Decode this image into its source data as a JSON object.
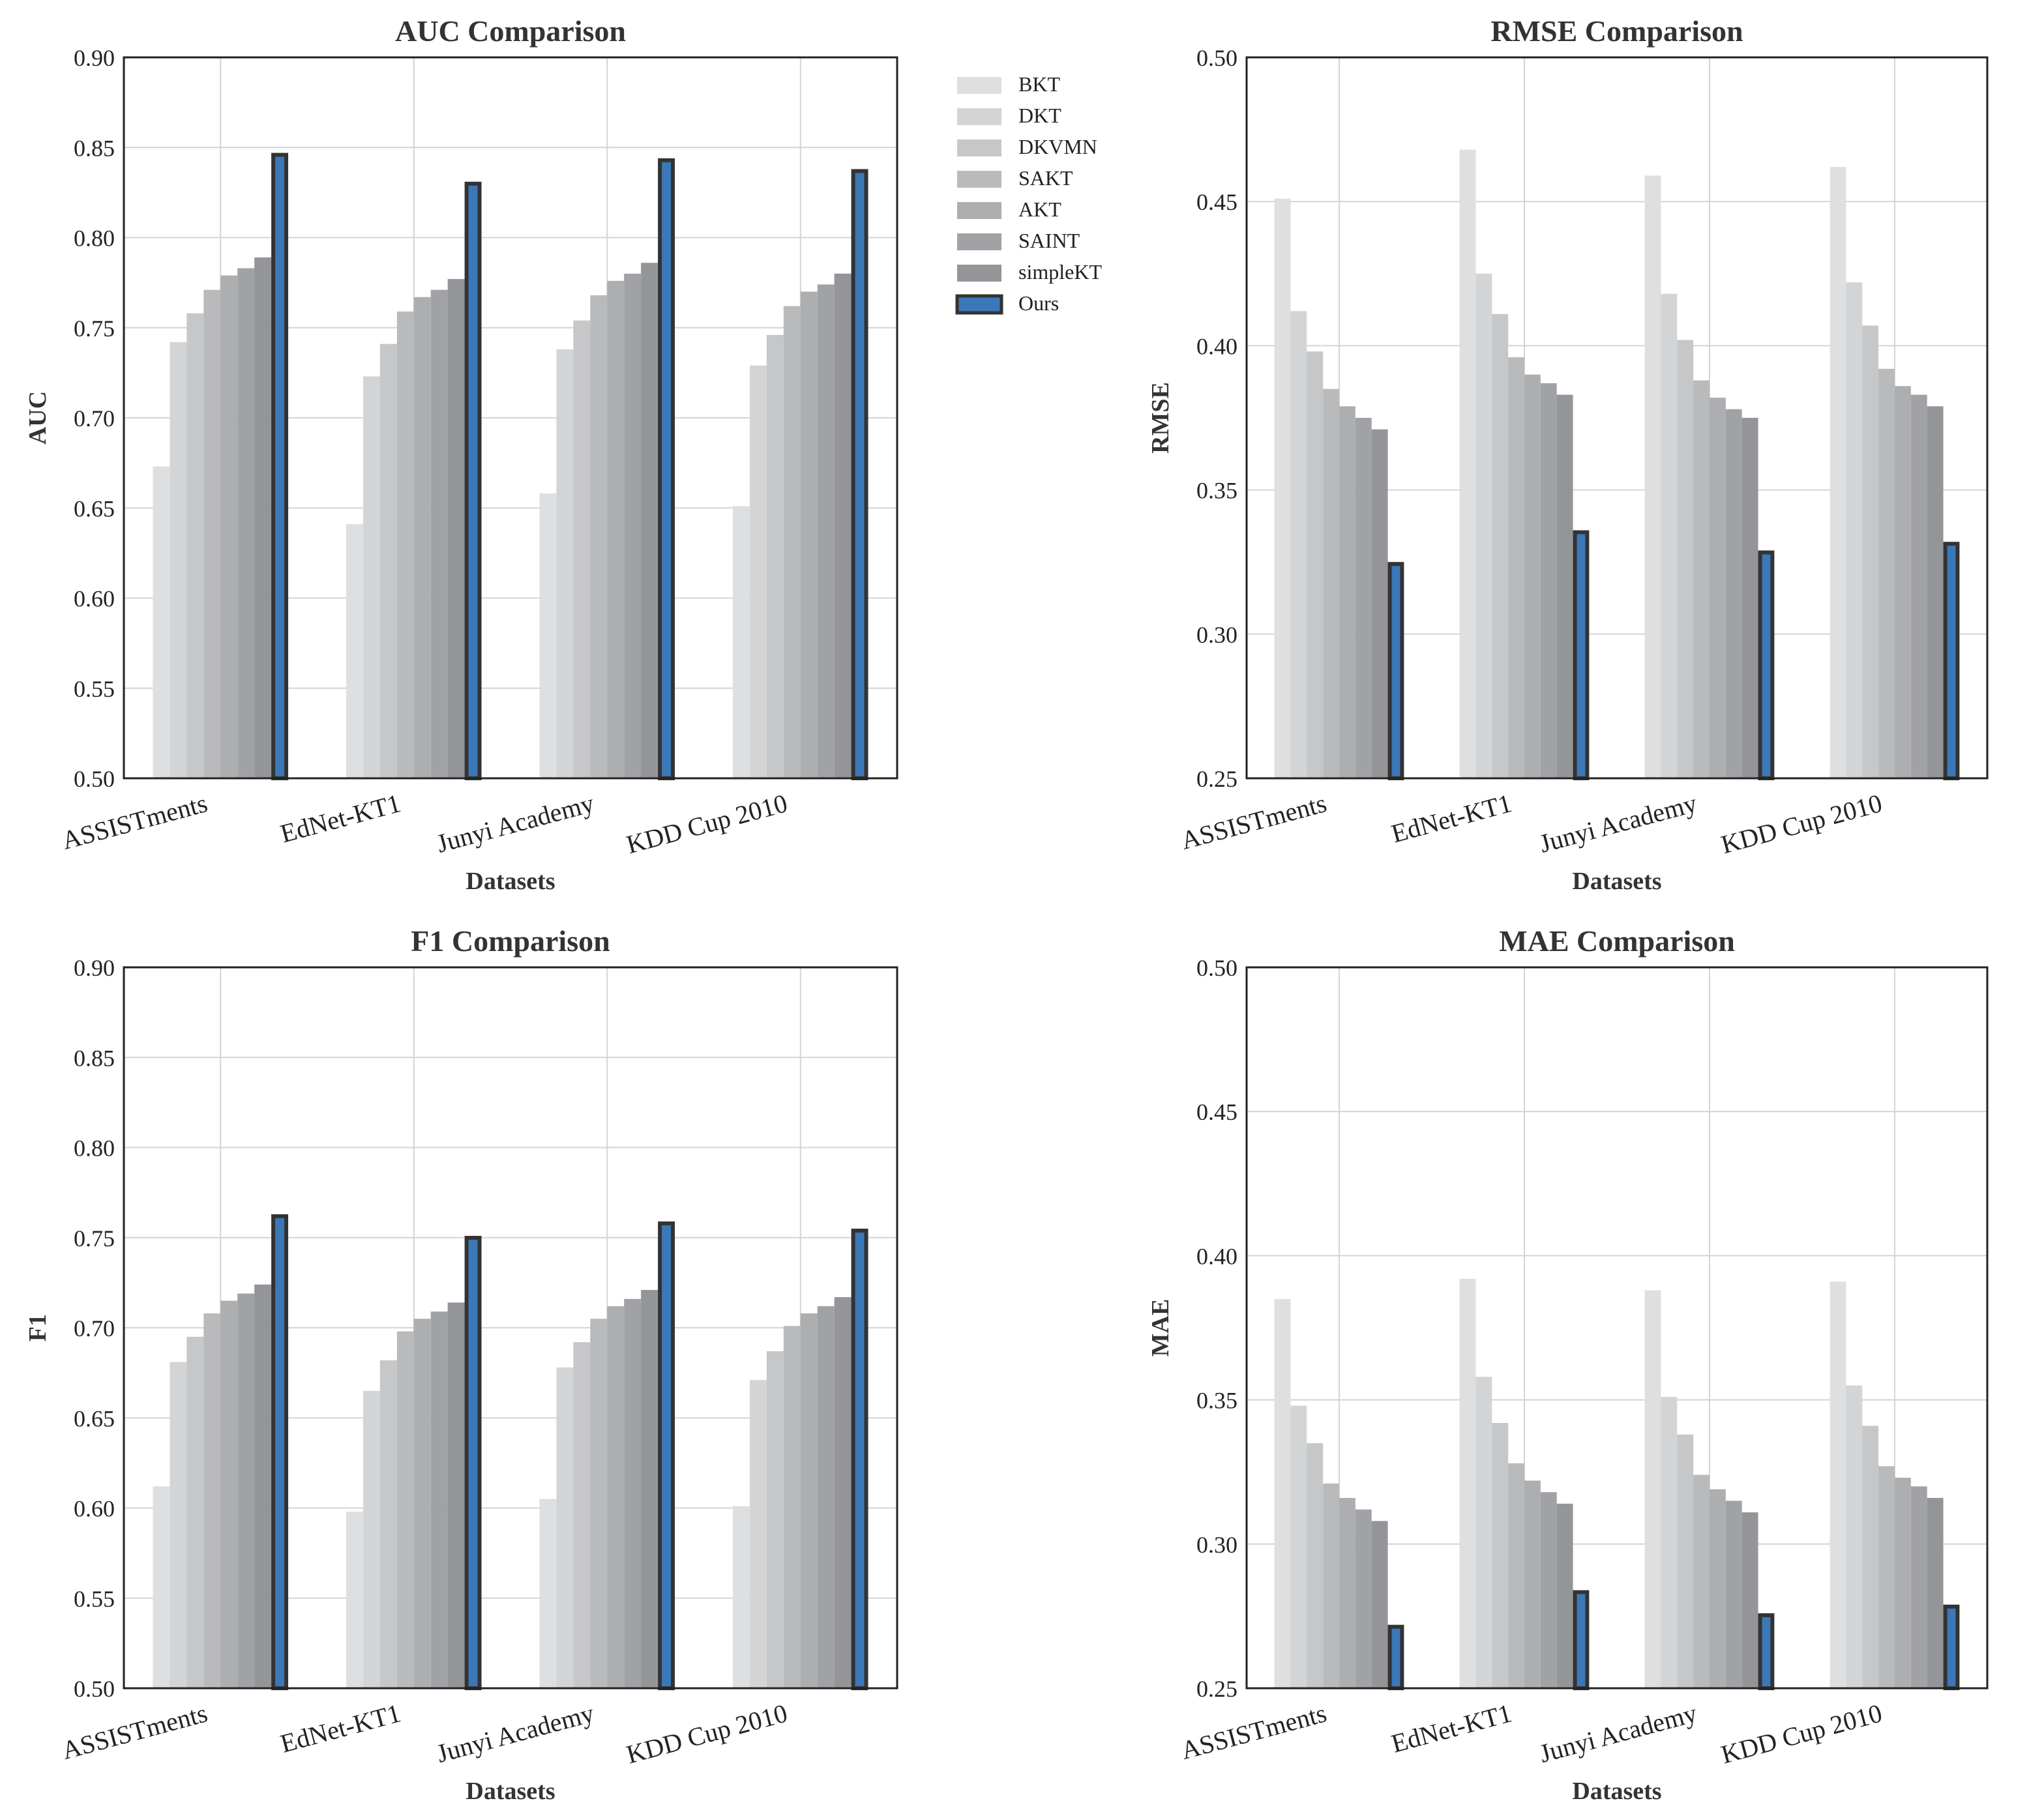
{
  "figure": {
    "xlabel": "Datasets",
    "legend_position": "right of AUC panel"
  },
  "legend": {
    "entries": [
      {
        "name": "BKT",
        "color": "#dedfe0"
      },
      {
        "name": "DKT",
        "color": "#d3d4d5"
      },
      {
        "name": "DKVMN",
        "color": "#c6c7c9"
      },
      {
        "name": "SAKT",
        "color": "#b9babc"
      },
      {
        "name": "AKT",
        "color": "#adaeb0"
      },
      {
        "name": "SAINT",
        "color": "#a1a2a5"
      },
      {
        "name": "simpleKT",
        "color": "#949598"
      },
      {
        "name": "Ours",
        "color": "#3b78b7",
        "edge": "#333333"
      }
    ]
  },
  "chart_data": [
    {
      "type": "bar",
      "title": "AUC Comparison",
      "xlabel": "Datasets",
      "ylabel": "AUC",
      "categories": [
        "ASSISTments",
        "EdNet-KT1",
        "Junyi Academy",
        "KDD Cup 2010"
      ],
      "ylim": [
        0.5,
        0.9
      ],
      "yticks": [
        "0.50",
        "0.55",
        "0.60",
        "0.65",
        "0.70",
        "0.75",
        "0.80",
        "0.85",
        "0.90"
      ],
      "grid": true,
      "series": [
        {
          "name": "BKT",
          "values": [
            0.673,
            0.641,
            0.658,
            0.651
          ]
        },
        {
          "name": "DKT",
          "values": [
            0.742,
            0.723,
            0.738,
            0.729
          ]
        },
        {
          "name": "DKVMN",
          "values": [
            0.758,
            0.741,
            0.754,
            0.746
          ]
        },
        {
          "name": "SAKT",
          "values": [
            0.771,
            0.759,
            0.768,
            0.762
          ]
        },
        {
          "name": "AKT",
          "values": [
            0.779,
            0.767,
            0.776,
            0.77
          ]
        },
        {
          "name": "SAINT",
          "values": [
            0.783,
            0.771,
            0.78,
            0.774
          ]
        },
        {
          "name": "simpleKT",
          "values": [
            0.789,
            0.777,
            0.786,
            0.78
          ]
        },
        {
          "name": "Ours",
          "values": [
            0.847,
            0.831,
            0.844,
            0.838
          ]
        }
      ]
    },
    {
      "type": "bar",
      "title": "RMSE Comparison",
      "xlabel": "Datasets",
      "ylabel": "RMSE",
      "categories": [
        "ASSISTments",
        "EdNet-KT1",
        "Junyi Academy",
        "KDD Cup 2010"
      ],
      "ylim": [
        0.25,
        0.5
      ],
      "yticks": [
        "0.25",
        "0.30",
        "0.35",
        "0.40",
        "0.45",
        "0.50"
      ],
      "grid": true,
      "series": [
        {
          "name": "BKT",
          "values": [
            0.451,
            0.468,
            0.459,
            0.462
          ]
        },
        {
          "name": "DKT",
          "values": [
            0.412,
            0.425,
            0.418,
            0.422
          ]
        },
        {
          "name": "DKVMN",
          "values": [
            0.398,
            0.411,
            0.402,
            0.407
          ]
        },
        {
          "name": "SAKT",
          "values": [
            0.385,
            0.396,
            0.388,
            0.392
          ]
        },
        {
          "name": "AKT",
          "values": [
            0.379,
            0.39,
            0.382,
            0.386
          ]
        },
        {
          "name": "SAINT",
          "values": [
            0.375,
            0.387,
            0.378,
            0.383
          ]
        },
        {
          "name": "simpleKT",
          "values": [
            0.371,
            0.383,
            0.375,
            0.379
          ]
        },
        {
          "name": "Ours",
          "values": [
            0.325,
            0.336,
            0.329,
            0.332
          ]
        }
      ]
    },
    {
      "type": "bar",
      "title": "F1 Comparison",
      "xlabel": "Datasets",
      "ylabel": "F1",
      "categories": [
        "ASSISTments",
        "EdNet-KT1",
        "Junyi Academy",
        "KDD Cup 2010"
      ],
      "ylim": [
        0.5,
        0.9
      ],
      "yticks": [
        "0.50",
        "0.55",
        "0.60",
        "0.65",
        "0.70",
        "0.75",
        "0.80",
        "0.85",
        "0.90"
      ],
      "grid": true,
      "series": [
        {
          "name": "BKT",
          "values": [
            0.612,
            0.598,
            0.605,
            0.601
          ]
        },
        {
          "name": "DKT",
          "values": [
            0.681,
            0.665,
            0.678,
            0.671
          ]
        },
        {
          "name": "DKVMN",
          "values": [
            0.695,
            0.682,
            0.692,
            0.687
          ]
        },
        {
          "name": "SAKT",
          "values": [
            0.708,
            0.698,
            0.705,
            0.701
          ]
        },
        {
          "name": "AKT",
          "values": [
            0.715,
            0.705,
            0.712,
            0.708
          ]
        },
        {
          "name": "SAINT",
          "values": [
            0.719,
            0.709,
            0.716,
            0.712
          ]
        },
        {
          "name": "simpleKT",
          "values": [
            0.724,
            0.714,
            0.721,
            0.717
          ]
        },
        {
          "name": "Ours",
          "values": [
            0.763,
            0.751,
            0.759,
            0.755
          ]
        }
      ]
    },
    {
      "type": "bar",
      "title": "MAE Comparison",
      "xlabel": "Datasets",
      "ylabel": "MAE",
      "categories": [
        "ASSISTments",
        "EdNet-KT1",
        "Junyi Academy",
        "KDD Cup 2010"
      ],
      "ylim": [
        0.25,
        0.5
      ],
      "yticks": [
        "0.25",
        "0.30",
        "0.35",
        "0.40",
        "0.45",
        "0.50"
      ],
      "grid": true,
      "series": [
        {
          "name": "BKT",
          "values": [
            0.385,
            0.392,
            0.388,
            0.391
          ]
        },
        {
          "name": "DKT",
          "values": [
            0.348,
            0.358,
            0.351,
            0.355
          ]
        },
        {
          "name": "DKVMN",
          "values": [
            0.335,
            0.342,
            0.338,
            0.341
          ]
        },
        {
          "name": "SAKT",
          "values": [
            0.321,
            0.328,
            0.324,
            0.327
          ]
        },
        {
          "name": "AKT",
          "values": [
            0.316,
            0.322,
            0.319,
            0.323
          ]
        },
        {
          "name": "SAINT",
          "values": [
            0.312,
            0.318,
            0.315,
            0.32
          ]
        },
        {
          "name": "simpleKT",
          "values": [
            0.308,
            0.314,
            0.311,
            0.316
          ]
        },
        {
          "name": "Ours",
          "values": [
            0.272,
            0.284,
            0.276,
            0.279
          ]
        }
      ]
    }
  ]
}
